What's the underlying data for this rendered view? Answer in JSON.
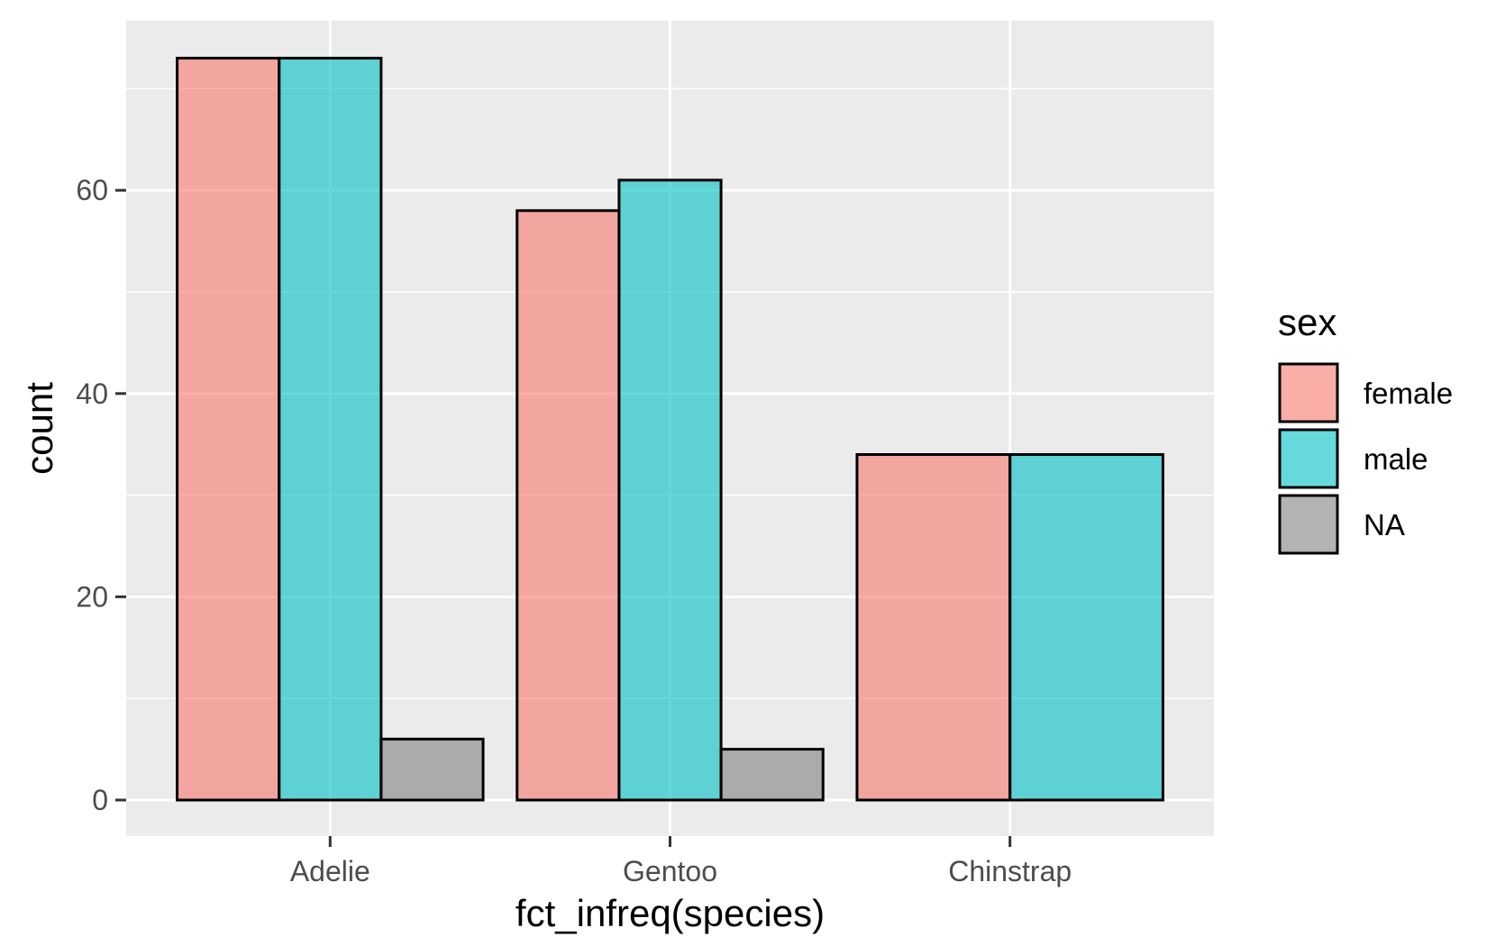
{
  "chart_data": {
    "type": "bar",
    "title": "",
    "xlabel": "fct_infreq(species)",
    "ylabel": "count",
    "categories": [
      "Adelie",
      "Gentoo",
      "Chinstrap"
    ],
    "series": [
      {
        "name": "female",
        "values": [
          73,
          58,
          34
        ],
        "color": "#F8766D"
      },
      {
        "name": "male",
        "values": [
          73,
          61,
          34
        ],
        "color": "#00BFC4"
      },
      {
        "name": "NA",
        "values": [
          6,
          5,
          null
        ],
        "color": "#808080"
      }
    ],
    "ylim": [
      0,
      76
    ],
    "yticks": [
      0,
      20,
      40,
      60
    ],
    "grid": true,
    "legend": {
      "title": "sex",
      "placement": "right"
    },
    "bar_opacity": 0.6,
    "panel_background": "#EBEBEB"
  }
}
